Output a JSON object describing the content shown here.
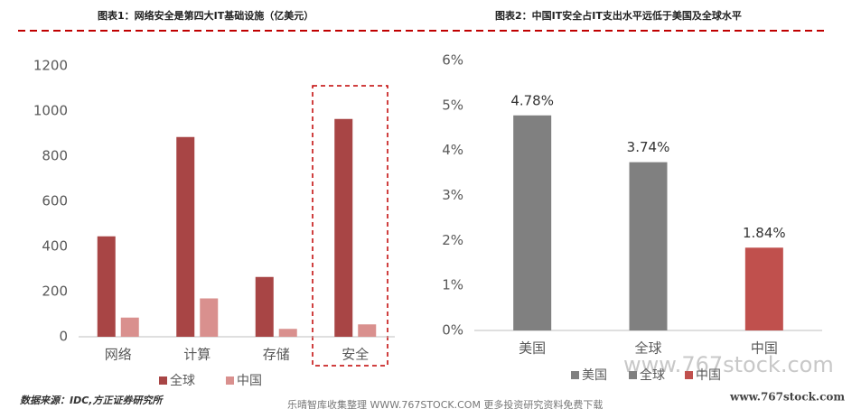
{
  "chart_data": [
    {
      "type": "bar",
      "title": "图表1：网络安全是第四大IT基础设施（亿美元）",
      "categories": [
        "网络",
        "计算",
        "存储",
        "安全"
      ],
      "series": [
        {
          "name": "全球",
          "color": "#a84545",
          "values": [
            445,
            885,
            265,
            965
          ]
        },
        {
          "name": "中国",
          "color": "#d9908e",
          "values": [
            85,
            170,
            35,
            55
          ]
        }
      ],
      "ylim": [
        0,
        1200
      ],
      "yticks": [
        0,
        200,
        400,
        600,
        800,
        1000,
        1200
      ],
      "grid": false
    },
    {
      "type": "bar",
      "title": "图表2：中国IT安全占IT支出水平远低于美国及全球水平",
      "categories": [
        "美国",
        "全球",
        "中国"
      ],
      "values": [
        4.78,
        3.74,
        1.84
      ],
      "value_labels": [
        "4.78%",
        "3.74%",
        "1.84%"
      ],
      "colors": [
        "#808080",
        "#808080",
        "#c0504d"
      ],
      "ylim": [
        0,
        6
      ],
      "yticks": [
        {
          "value": 0,
          "label": "0%"
        },
        {
          "value": 1,
          "label": "1%"
        },
        {
          "value": 2,
          "label": "2%"
        },
        {
          "value": 3,
          "label": "3%"
        },
        {
          "value": 4,
          "label": "4%"
        },
        {
          "value": 5,
          "label": "5%"
        },
        {
          "value": 6,
          "label": "6%"
        }
      ],
      "grid": false
    }
  ],
  "footer": {
    "source": "数据来源：IDC,方正证券研究所",
    "notice": "乐晴智库收集整理 WWW.767STOCK.COM 更多投资研究资料免费下载",
    "watermark": "www.767stock.com"
  }
}
